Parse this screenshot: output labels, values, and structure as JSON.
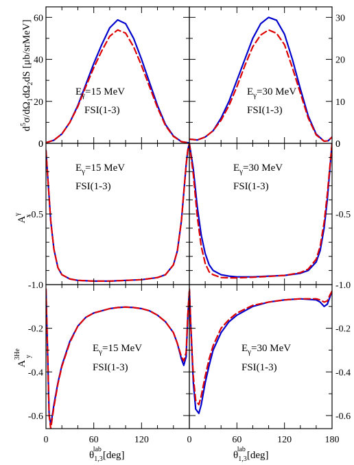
{
  "figure": {
    "x_axis_label": "θ",
    "x_axis_label_sub": "1,3",
    "x_axis_label_sup": "lab",
    "x_axis_label_unit": "[deg]",
    "x_ticks_left": [
      0,
      60,
      120
    ],
    "x_ticks_right": [
      0,
      60,
      120,
      180
    ],
    "row_labels": [
      {
        "main": "d",
        "sup": "5",
        "rest": "σ/dΩ",
        "sub1": "1",
        "mid": "dΩ",
        "sub2": "2",
        "tail": "dS [μb/srMeV]"
      },
      {
        "main": "A",
        "sup": "γ",
        "sub": "x"
      },
      {
        "main": "A",
        "sup": "3He",
        "sub": "y"
      }
    ]
  },
  "annotations": {
    "e15_prefix": "E",
    "e15_sub": "γ",
    "e15_rest": "=15 MeV",
    "e30_prefix": "E",
    "e30_sub": "γ",
    "e30_rest": "=30 MeV",
    "fsi": "FSI(1-3)"
  },
  "colors": {
    "solid": "#0000cc",
    "dashed": "#dd0000"
  },
  "chart_data": [
    {
      "type": "line",
      "panel": "top-left",
      "xlabel": "",
      "ylabel": "d5σ/dΩ1dΩ2dS [μb/srMeV]",
      "xlim": [
        0,
        180
      ],
      "ylim": [
        0,
        65
      ],
      "yticks": [
        0,
        20,
        40,
        60
      ],
      "text": [
        "Eγ=15 MeV",
        "FSI(1-3)"
      ],
      "series": [
        {
          "style": "solid",
          "x": [
            0,
            10,
            20,
            30,
            40,
            50,
            60,
            70,
            80,
            90,
            100,
            110,
            120,
            130,
            140,
            150,
            160,
            170,
            180
          ],
          "y": [
            0.3,
            1.5,
            4.5,
            10,
            18,
            28,
            38,
            47,
            55,
            58.8,
            57,
            50,
            40,
            29,
            18,
            9,
            3.5,
            0.8,
            0.2
          ]
        },
        {
          "style": "dashed",
          "x": [
            0,
            10,
            20,
            30,
            40,
            50,
            60,
            70,
            80,
            90,
            100,
            110,
            120,
            130,
            140,
            150,
            160,
            170,
            180
          ],
          "y": [
            0.3,
            1.5,
            4.5,
            10,
            17.5,
            27,
            36,
            44,
            51,
            54,
            52.5,
            46,
            37,
            27,
            17,
            8.5,
            3.3,
            0.8,
            0.2
          ]
        }
      ]
    },
    {
      "type": "line",
      "panel": "top-right",
      "xlabel": "",
      "ylabel": "",
      "xlim": [
        0,
        180
      ],
      "ylim": [
        0,
        32.5
      ],
      "yticks": [
        0,
        10,
        20,
        30
      ],
      "text": [
        "Eγ=30 MeV",
        "FSI(1-3)"
      ],
      "series": [
        {
          "style": "solid",
          "x": [
            0,
            10,
            20,
            30,
            40,
            50,
            60,
            70,
            80,
            90,
            100,
            110,
            120,
            130,
            140,
            150,
            160,
            170,
            175,
            180
          ],
          "y": [
            1,
            0.8,
            1.5,
            3,
            6,
            10,
            15,
            20,
            25,
            28.5,
            30,
            29.3,
            26,
            20,
            13,
            6.5,
            2.2,
            0.5,
            0.6,
            1.5
          ]
        },
        {
          "style": "dashed",
          "x": [
            0,
            10,
            20,
            30,
            40,
            50,
            60,
            70,
            80,
            90,
            100,
            110,
            120,
            130,
            140,
            150,
            160,
            170,
            175,
            180
          ],
          "y": [
            1,
            0.8,
            1.5,
            3,
            5.5,
            9,
            13.5,
            18.5,
            23,
            25.8,
            27,
            26.2,
            23.5,
            18,
            12,
            6,
            2,
            0.5,
            0.6,
            1.5
          ]
        }
      ]
    },
    {
      "type": "line",
      "panel": "middle-left",
      "xlabel": "",
      "ylabel": "Aγx",
      "xlim": [
        0,
        180
      ],
      "ylim": [
        -1.0,
        0.0
      ],
      "yticks": [
        -0.5
      ],
      "text": [
        "Eγ=15 MeV",
        "FSI(1-3)"
      ],
      "series": [
        {
          "style": "solid",
          "x": [
            0,
            3,
            6,
            10,
            15,
            20,
            30,
            40,
            60,
            80,
            100,
            120,
            140,
            150,
            160,
            165,
            170,
            173,
            176,
            178,
            180
          ],
          "y": [
            -0.05,
            -0.3,
            -0.55,
            -0.75,
            -0.88,
            -0.93,
            -0.96,
            -0.97,
            -0.975,
            -0.975,
            -0.97,
            -0.965,
            -0.95,
            -0.93,
            -0.86,
            -0.76,
            -0.55,
            -0.35,
            -0.15,
            -0.05,
            0.0
          ]
        },
        {
          "style": "dashed",
          "x": [
            0,
            3,
            6,
            10,
            15,
            20,
            30,
            40,
            60,
            80,
            100,
            120,
            140,
            150,
            160,
            165,
            170,
            173,
            176,
            178,
            180
          ],
          "y": [
            -0.05,
            -0.3,
            -0.55,
            -0.75,
            -0.88,
            -0.93,
            -0.96,
            -0.97,
            -0.975,
            -0.975,
            -0.97,
            -0.965,
            -0.95,
            -0.93,
            -0.86,
            -0.76,
            -0.55,
            -0.35,
            -0.15,
            -0.05,
            0.0
          ]
        }
      ]
    },
    {
      "type": "line",
      "panel": "middle-right",
      "xlabel": "",
      "ylabel": "",
      "xlim": [
        0,
        180
      ],
      "ylim": [
        -1.0,
        0.0
      ],
      "yticks": [
        -0.5
      ],
      "text": [
        "Eγ=30 MeV",
        "FSI(1-3)"
      ],
      "series": [
        {
          "style": "solid",
          "x": [
            0,
            5,
            10,
            15,
            20,
            25,
            30,
            40,
            50,
            60,
            80,
            100,
            120,
            140,
            150,
            160,
            165,
            170,
            174,
            177,
            180
          ],
          "y": [
            0.0,
            -0.18,
            -0.45,
            -0.65,
            -0.78,
            -0.86,
            -0.9,
            -0.93,
            -0.94,
            -0.945,
            -0.945,
            -0.94,
            -0.935,
            -0.92,
            -0.9,
            -0.84,
            -0.76,
            -0.6,
            -0.4,
            -0.2,
            0.0
          ]
        },
        {
          "style": "dashed",
          "x": [
            0,
            5,
            10,
            15,
            20,
            25,
            30,
            40,
            50,
            60,
            80,
            100,
            120,
            140,
            150,
            160,
            165,
            170,
            174,
            177,
            180
          ],
          "y": [
            0.0,
            -0.22,
            -0.52,
            -0.73,
            -0.85,
            -0.91,
            -0.93,
            -0.95,
            -0.952,
            -0.952,
            -0.948,
            -0.942,
            -0.935,
            -0.915,
            -0.89,
            -0.82,
            -0.73,
            -0.56,
            -0.36,
            -0.18,
            0.0
          ]
        }
      ]
    },
    {
      "type": "line",
      "panel": "bottom-left",
      "xlabel": "θ1,3lab [deg]",
      "ylabel": "A3Hey",
      "xlim": [
        0,
        180
      ],
      "ylim": [
        -0.66,
        -0.0
      ],
      "yticks": [
        -0.6,
        -0.4,
        -0.2
      ],
      "text": [
        "Eγ=15 MeV",
        "FSI(1-3)"
      ],
      "series": [
        {
          "style": "solid",
          "x": [
            0,
            2,
            4,
            6,
            8,
            10,
            15,
            20,
            30,
            40,
            50,
            60,
            70,
            80,
            90,
            100,
            110,
            120,
            130,
            140,
            150,
            160,
            165,
            170,
            173,
            176,
            178,
            180
          ],
          "y": [
            -0.02,
            -0.3,
            -0.6,
            -0.64,
            -0.6,
            -0.55,
            -0.45,
            -0.37,
            -0.26,
            -0.19,
            -0.15,
            -0.13,
            -0.12,
            -0.11,
            -0.105,
            -0.103,
            -0.105,
            -0.11,
            -0.12,
            -0.14,
            -0.17,
            -0.22,
            -0.27,
            -0.34,
            -0.37,
            -0.33,
            -0.15,
            -0.03
          ]
        },
        {
          "style": "dashed",
          "x": [
            0,
            2,
            4,
            6,
            8,
            10,
            15,
            20,
            30,
            40,
            50,
            60,
            70,
            80,
            90,
            100,
            110,
            120,
            130,
            140,
            150,
            160,
            165,
            170,
            173,
            176,
            178,
            180
          ],
          "y": [
            -0.02,
            -0.3,
            -0.6,
            -0.66,
            -0.61,
            -0.56,
            -0.455,
            -0.375,
            -0.265,
            -0.19,
            -0.15,
            -0.13,
            -0.12,
            -0.11,
            -0.105,
            -0.103,
            -0.105,
            -0.11,
            -0.12,
            -0.14,
            -0.17,
            -0.22,
            -0.27,
            -0.33,
            -0.35,
            -0.31,
            -0.14,
            -0.03
          ]
        }
      ]
    },
    {
      "type": "line",
      "panel": "bottom-right",
      "xlabel": "θ1,3lab [deg]",
      "ylabel": "",
      "xlim": [
        0,
        180
      ],
      "ylim": [
        -0.66,
        -0.0
      ],
      "yticks": [
        -0.6,
        -0.4,
        -0.2
      ],
      "text": [
        "Eγ=30 MeV",
        "FSI(1-3)"
      ],
      "series": [
        {
          "style": "solid",
          "x": [
            0,
            2,
            5,
            8,
            12,
            15,
            20,
            25,
            30,
            40,
            50,
            60,
            80,
            100,
            120,
            140,
            160,
            165,
            170,
            174,
            177,
            180
          ],
          "y": [
            -0.02,
            -0.2,
            -0.45,
            -0.57,
            -0.59,
            -0.55,
            -0.45,
            -0.37,
            -0.3,
            -0.22,
            -0.17,
            -0.14,
            -0.1,
            -0.08,
            -0.07,
            -0.065,
            -0.07,
            -0.08,
            -0.1,
            -0.09,
            -0.06,
            -0.03
          ]
        },
        {
          "style": "dashed",
          "x": [
            0,
            2,
            5,
            8,
            12,
            15,
            20,
            25,
            30,
            40,
            50,
            60,
            80,
            100,
            120,
            140,
            160,
            165,
            170,
            174,
            177,
            180
          ],
          "y": [
            -0.02,
            -0.2,
            -0.42,
            -0.53,
            -0.55,
            -0.51,
            -0.42,
            -0.34,
            -0.28,
            -0.2,
            -0.16,
            -0.13,
            -0.095,
            -0.08,
            -0.07,
            -0.065,
            -0.065,
            -0.07,
            -0.08,
            -0.075,
            -0.05,
            -0.03
          ]
        }
      ]
    }
  ]
}
